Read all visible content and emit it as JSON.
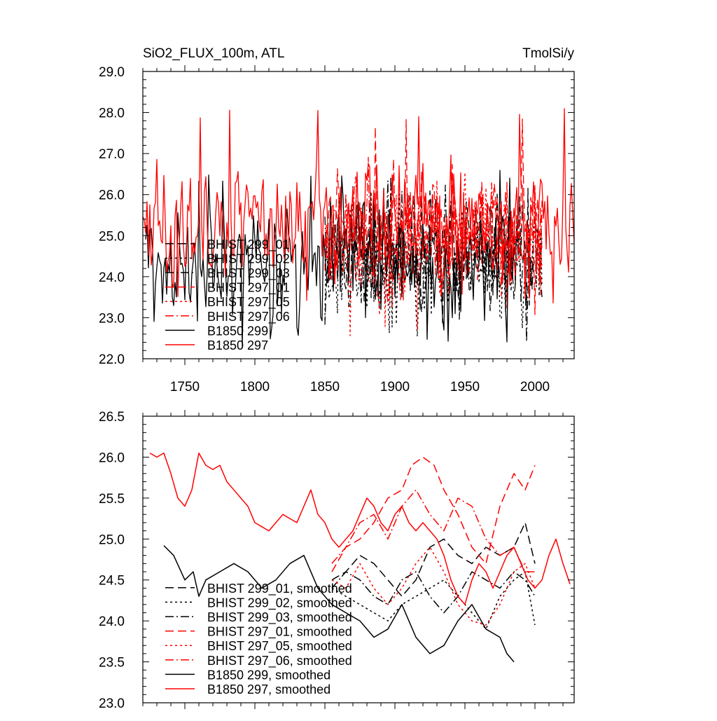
{
  "chart_data": [
    {
      "type": "line",
      "title_left": "SiO2_FLUX_100m, ATL",
      "title_right": "TmolSi/y",
      "xlabel": "",
      "ylabel": "",
      "xlim": [
        1720,
        2028
      ],
      "ylim": [
        22.0,
        29.0
      ],
      "x_ticks": [
        1750,
        1800,
        1850,
        1900,
        1950,
        2000
      ],
      "x_tick_labels": [
        "1750",
        "1800",
        "1850",
        "1900",
        "1950",
        "2000"
      ],
      "y_ticks": [
        22,
        23,
        24,
        25,
        26,
        27,
        28,
        29
      ],
      "y_tick_labels": [
        "22.0",
        "23.0",
        "24.0",
        "25.0",
        "26.0",
        "27.0",
        "28.0",
        "29.0"
      ],
      "grid": false,
      "legend_position": "lower-left",
      "series": [
        {
          "name": "BHIST 299_01",
          "color": "#000000",
          "dash": "dash",
          "x_range": [
            1850,
            2005
          ],
          "approx_mean": 24.4,
          "approx_min": 22.7,
          "approx_max": 26.2
        },
        {
          "name": "BHIST 299_02",
          "color": "#000000",
          "dash": "dot",
          "x_range": [
            1850,
            2005
          ],
          "approx_mean": 24.3,
          "approx_min": 22.5,
          "approx_max": 26.2
        },
        {
          "name": "BHIST 299_03",
          "color": "#000000",
          "dash": "dashdot",
          "x_range": [
            1850,
            2005
          ],
          "approx_mean": 24.4,
          "approx_min": 22.3,
          "approx_max": 26.5
        },
        {
          "name": "BHIST 297_01",
          "color": "#ff0000",
          "dash": "dash",
          "x_range": [
            1850,
            2005
          ],
          "approx_mean": 25.0,
          "approx_min": 23.0,
          "approx_max": 27.9
        },
        {
          "name": "BHIST 297_05",
          "color": "#ff0000",
          "dash": "dot",
          "x_range": [
            1850,
            2005
          ],
          "approx_mean": 24.9,
          "approx_min": 22.5,
          "approx_max": 27.5
        },
        {
          "name": "BHIST 297_06",
          "color": "#ff0000",
          "dash": "dashdot",
          "x_range": [
            1850,
            2005
          ],
          "approx_mean": 24.9,
          "approx_min": 23.0,
          "approx_max": 27.2
        },
        {
          "name": "B1850 299",
          "color": "#000000",
          "dash": "solid",
          "x_range": [
            1722,
            1985
          ],
          "approx_mean": 24.4,
          "approx_min": 22.2,
          "approx_max": 26.6
        },
        {
          "name": "B1850 297",
          "color": "#ff0000",
          "dash": "solid",
          "x_range": [
            1720,
            2028
          ],
          "approx_mean": 25.3,
          "approx_min": 23.3,
          "approx_max": 28.1
        }
      ]
    },
    {
      "type": "line",
      "xlabel": "",
      "ylabel": "",
      "xlim": [
        1720,
        2028
      ],
      "ylim": [
        23.0,
        26.5
      ],
      "x_ticks": [
        1750,
        1800,
        1850,
        1900,
        1950,
        2000
      ],
      "y_ticks": [
        23.0,
        23.5,
        24.0,
        24.5,
        25.0,
        25.5,
        26.0,
        26.5
      ],
      "y_tick_labels": [
        "23.0",
        "23.5",
        "24.0",
        "24.5",
        "25.0",
        "25.5",
        "26.0",
        "26.5"
      ],
      "grid": false,
      "legend_position": "lower-left",
      "series": [
        {
          "name": "BHIST 299_01, smoothed",
          "color": "#000000",
          "dash": "dash",
          "x": [
            1855,
            1865,
            1875,
            1885,
            1895,
            1905,
            1915,
            1925,
            1935,
            1945,
            1955,
            1965,
            1975,
            1985,
            1993,
            2000
          ],
          "y": [
            24.5,
            24.6,
            24.8,
            24.7,
            24.5,
            24.3,
            24.5,
            24.9,
            25.0,
            24.8,
            24.7,
            24.9,
            24.8,
            24.9,
            25.2,
            24.7
          ]
        },
        {
          "name": "BHIST 299_02, smoothed",
          "color": "#000000",
          "dash": "dot",
          "x": [
            1855,
            1865,
            1875,
            1885,
            1895,
            1905,
            1915,
            1925,
            1935,
            1945,
            1955,
            1965,
            1975,
            1985,
            1993,
            2000
          ],
          "y": [
            24.4,
            24.3,
            24.2,
            24.1,
            24.0,
            24.2,
            24.3,
            24.4,
            24.5,
            24.3,
            24.1,
            23.9,
            24.3,
            24.5,
            24.6,
            23.95
          ]
        },
        {
          "name": "BHIST 299_03, smoothed",
          "color": "#000000",
          "dash": "dashdot",
          "x": [
            1855,
            1865,
            1875,
            1885,
            1895,
            1905,
            1915,
            1925,
            1935,
            1945,
            1955,
            1965,
            1975,
            1985,
            1993,
            2000
          ],
          "y": [
            24.4,
            24.6,
            24.5,
            24.3,
            24.2,
            24.5,
            24.6,
            24.3,
            24.1,
            24.3,
            24.6,
            24.5,
            24.4,
            24.6,
            24.5,
            24.3
          ]
        },
        {
          "name": "BHIST 297_01, smoothed",
          "color": "#ff0000",
          "dash": "dash",
          "x": [
            1855,
            1865,
            1875,
            1885,
            1895,
            1905,
            1912,
            1920,
            1928,
            1935,
            1945,
            1955,
            1965,
            1975,
            1985,
            1993,
            2000
          ],
          "y": [
            24.6,
            24.9,
            25.0,
            25.2,
            25.5,
            25.6,
            25.9,
            26.0,
            25.9,
            25.6,
            25.3,
            24.9,
            24.7,
            25.4,
            25.8,
            25.6,
            25.9
          ]
        },
        {
          "name": "BHIST 297_05, smoothed",
          "color": "#ff0000",
          "dash": "dot",
          "x": [
            1855,
            1865,
            1875,
            1885,
            1895,
            1905,
            1915,
            1925,
            1935,
            1945,
            1955,
            1965,
            1975,
            1985,
            1993,
            2000
          ],
          "y": [
            24.5,
            24.4,
            24.7,
            24.4,
            24.2,
            24.4,
            24.7,
            24.9,
            24.6,
            24.2,
            24.0,
            23.95,
            24.2,
            24.6,
            24.7,
            24.4
          ]
        },
        {
          "name": "BHIST 297_06, smoothed",
          "color": "#ff0000",
          "dash": "dashdot",
          "x": [
            1855,
            1865,
            1875,
            1885,
            1895,
            1905,
            1915,
            1925,
            1935,
            1945,
            1955,
            1965,
            1975,
            1985,
            1993,
            2000
          ],
          "y": [
            24.7,
            24.9,
            25.2,
            25.3,
            25.0,
            25.4,
            25.6,
            25.3,
            25.1,
            25.5,
            25.4,
            25.0,
            24.8,
            24.9,
            24.6,
            24.6
          ]
        },
        {
          "name": "B1850 299, smoothed",
          "color": "#000000",
          "dash": "solid",
          "x": [
            1735,
            1742,
            1750,
            1756,
            1760,
            1765,
            1775,
            1785,
            1795,
            1805,
            1815,
            1825,
            1835,
            1845,
            1855,
            1865,
            1875,
            1885,
            1895,
            1905,
            1915,
            1925,
            1935,
            1945,
            1955,
            1965,
            1975,
            1980,
            1985
          ],
          "y": [
            24.92,
            24.8,
            24.5,
            24.6,
            24.3,
            24.5,
            24.6,
            24.7,
            24.6,
            24.4,
            24.5,
            24.7,
            24.8,
            24.4,
            24.2,
            24.1,
            24.0,
            23.8,
            23.9,
            24.2,
            23.8,
            23.6,
            23.7,
            24.0,
            24.2,
            23.9,
            23.8,
            23.6,
            23.5
          ]
        },
        {
          "name": "B1850 297, smoothed",
          "color": "#ff0000",
          "dash": "solid",
          "x": [
            1725,
            1730,
            1735,
            1740,
            1745,
            1750,
            1755,
            1760,
            1765,
            1770,
            1775,
            1780,
            1785,
            1790,
            1795,
            1800,
            1805,
            1810,
            1815,
            1820,
            1825,
            1830,
            1835,
            1840,
            1845,
            1850,
            1855,
            1860,
            1865,
            1870,
            1875,
            1880,
            1885,
            1890,
            1895,
            1900,
            1905,
            1910,
            1915,
            1920,
            1925,
            1930,
            1935,
            1940,
            1945,
            1950,
            1955,
            1960,
            1965,
            1970,
            1975,
            1980,
            1985,
            1990,
            1995,
            2000,
            2005,
            2010,
            2015,
            2020,
            2025
          ],
          "y": [
            26.05,
            26.0,
            26.05,
            25.8,
            25.5,
            25.4,
            25.6,
            26.05,
            25.9,
            25.85,
            25.9,
            25.7,
            25.6,
            25.5,
            25.4,
            25.2,
            25.15,
            25.1,
            25.2,
            25.3,
            25.25,
            25.2,
            25.4,
            25.6,
            25.3,
            25.2,
            25.0,
            24.9,
            25.0,
            25.1,
            25.3,
            25.5,
            25.4,
            25.2,
            25.1,
            25.3,
            25.4,
            25.2,
            25.1,
            25.2,
            25.1,
            25.0,
            24.8,
            24.5,
            24.3,
            24.2,
            24.5,
            24.7,
            24.6,
            24.4,
            24.6,
            24.8,
            24.9,
            24.7,
            24.5,
            24.4,
            24.5,
            24.8,
            25.0,
            24.7,
            24.45
          ]
        }
      ]
    }
  ]
}
